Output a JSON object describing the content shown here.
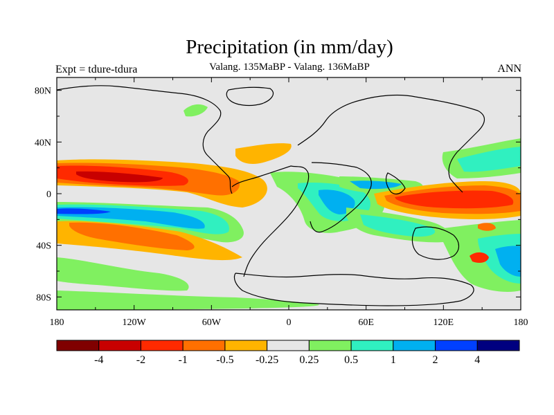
{
  "title": "Precipitation (in mm/day)",
  "subtitle": "Valang.  135MaBP - Valang.  136MaBP",
  "left_label": "Expt = tdure-tdura",
  "right_label": "ANN",
  "map": {
    "lon_range": [
      -180,
      180
    ],
    "lat_range": [
      -90,
      90
    ],
    "lat_ticks": [
      {
        "value": 80,
        "label": "80N"
      },
      {
        "value": 40,
        "label": "40N"
      },
      {
        "value": 0,
        "label": "0"
      },
      {
        "value": -40,
        "label": "40S"
      },
      {
        "value": -80,
        "label": "80S"
      }
    ],
    "lon_ticks": [
      {
        "value": -180,
        "label": "180"
      },
      {
        "value": -120,
        "label": "120W"
      },
      {
        "value": -60,
        "label": "60W"
      },
      {
        "value": 0,
        "label": "0"
      },
      {
        "value": 60,
        "label": "60E"
      },
      {
        "value": 120,
        "label": "120E"
      },
      {
        "value": 180,
        "label": "180"
      }
    ]
  },
  "colorbar": {
    "colors": [
      "#800000",
      "#c80000",
      "#ff2a00",
      "#ff7000",
      "#ffb400",
      "#e6e6e6",
      "#80f060",
      "#30f0c0",
      "#00b0f0",
      "#0040ff",
      "#000080"
    ],
    "labels": [
      "-4",
      "-2",
      "-1",
      "-0.5",
      "-0.25",
      "0.25",
      "0.5",
      "1",
      "2",
      "4"
    ]
  },
  "colors": {
    "background": "#e6e6e6",
    "coast": "#000000"
  }
}
